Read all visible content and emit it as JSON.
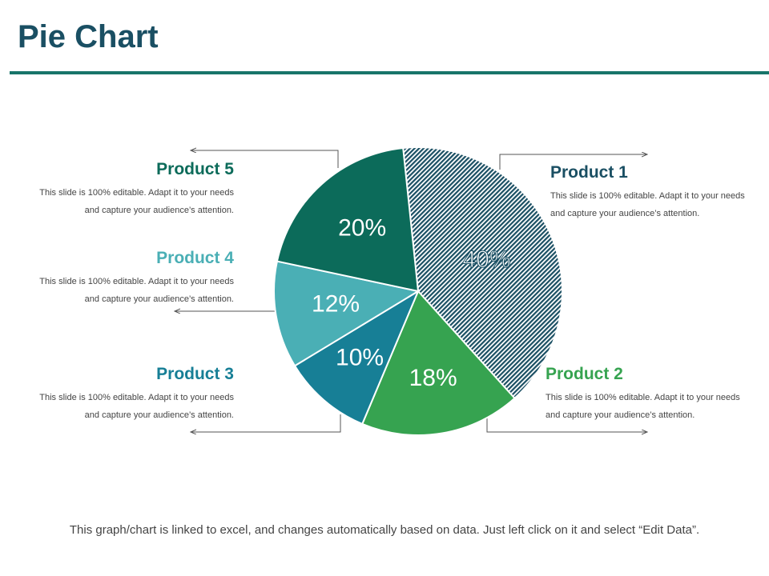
{
  "title": "Pie Chart",
  "footer": "This graph/chart is linked to excel, and changes automatically  based on data. Just left click on it and select “Edit Data”.",
  "colors": {
    "title": "#1a4f63",
    "rule": "#18756a",
    "arrow": "#555555"
  },
  "chart_data": {
    "type": "pie",
    "slices": [
      {
        "label": "Product 1",
        "value": 40,
        "display": "40%",
        "color": "#1a4f63",
        "pattern": "diagonal-hatch",
        "description": "This slide is 100% editable. Adapt it to your needs and capture your audience’s attention."
      },
      {
        "label": "Product 2",
        "value": 18,
        "display": "18%",
        "color": "#36a350",
        "description": "This slide is 100% editable. Adapt it to your needs and capture your audience’s attention."
      },
      {
        "label": "Product 3",
        "value": 10,
        "display": "10%",
        "color": "#177f96",
        "description": "This slide is 100% editable. Adapt it to your needs and capture your audience’s attention."
      },
      {
        "label": "Product 4",
        "value": 12,
        "display": "12%",
        "color": "#4aafb5",
        "description": "This slide is 100% editable. Adapt it to your needs and capture your audience’s attention."
      },
      {
        "label": "Product 5",
        "value": 20,
        "display": "20%",
        "color": "#0c6b5a",
        "description": "This slide is 100% editable. Adapt it to your needs and capture your audience’s attention."
      }
    ]
  }
}
